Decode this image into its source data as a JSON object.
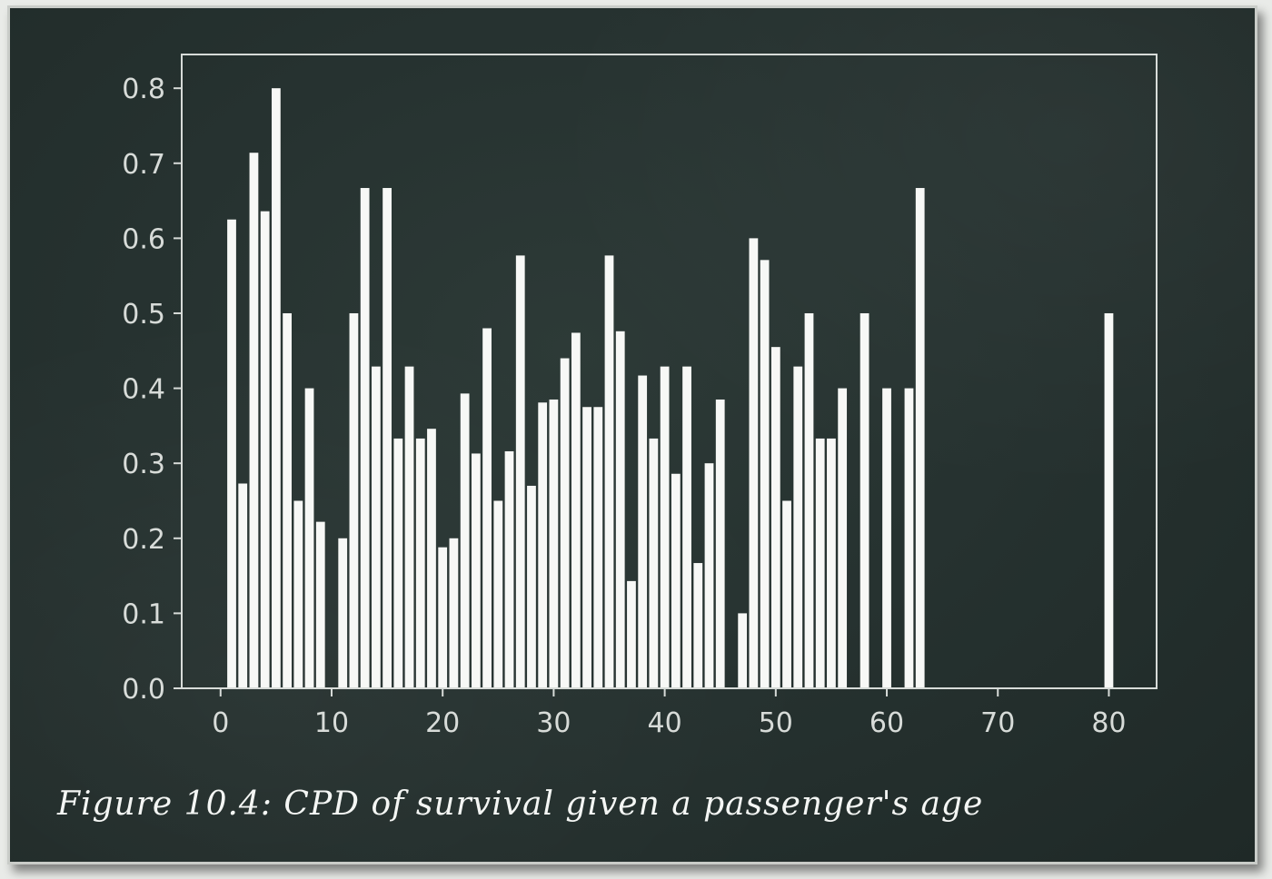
{
  "caption": "Figure 10.4: CPD of survival given a passenger's age",
  "colors": {
    "board": "#263230",
    "bar": "#f7f8f6",
    "axis": "#d7dbd8"
  },
  "chart_data": {
    "type": "bar",
    "title": "",
    "xlabel": "",
    "ylabel": "",
    "xlim": [
      -3.5,
      84.3
    ],
    "ylim": [
      0,
      0.8
    ],
    "xticks": [
      0,
      10,
      20,
      30,
      40,
      50,
      60,
      70,
      80
    ],
    "yticks": [
      0.0,
      0.1,
      0.2,
      0.3,
      0.4,
      0.5,
      0.6,
      0.7,
      0.8
    ],
    "xtick_labels": [
      "0",
      "10",
      "20",
      "30",
      "40",
      "50",
      "60",
      "70",
      "80"
    ],
    "ytick_labels": [
      "0.0",
      "0.1",
      "0.2",
      "0.3",
      "0.4",
      "0.5",
      "0.6",
      "0.7",
      "0.8"
    ],
    "grid": false,
    "x": [
      1,
      2,
      3,
      4,
      5,
      6,
      7,
      8,
      9,
      11,
      12,
      13,
      14,
      15,
      16,
      17,
      18,
      19,
      20,
      21,
      22,
      23,
      24,
      25,
      26,
      27,
      28,
      29,
      30,
      31,
      32,
      33,
      34,
      35,
      36,
      37,
      38,
      39,
      40,
      41,
      42,
      43,
      44,
      45,
      47,
      48,
      49,
      50,
      51,
      52,
      53,
      54,
      55,
      56,
      58,
      60,
      62,
      63,
      80
    ],
    "values": [
      0.625,
      0.273,
      0.714,
      0.636,
      0.8,
      0.5,
      0.25,
      0.4,
      0.222,
      0.2,
      0.5,
      0.667,
      0.429,
      0.667,
      0.333,
      0.429,
      0.333,
      0.346,
      0.188,
      0.2,
      0.393,
      0.313,
      0.48,
      0.25,
      0.316,
      0.577,
      0.27,
      0.381,
      0.385,
      0.44,
      0.474,
      0.375,
      0.375,
      0.577,
      0.476,
      0.143,
      0.417,
      0.333,
      0.429,
      0.286,
      0.429,
      0.167,
      0.3,
      0.385,
      0.1,
      0.6,
      0.571,
      0.455,
      0.25,
      0.429,
      0.5,
      0.333,
      0.333,
      0.4,
      0.5,
      0.4,
      0.4,
      0.667,
      0.5
    ]
  }
}
